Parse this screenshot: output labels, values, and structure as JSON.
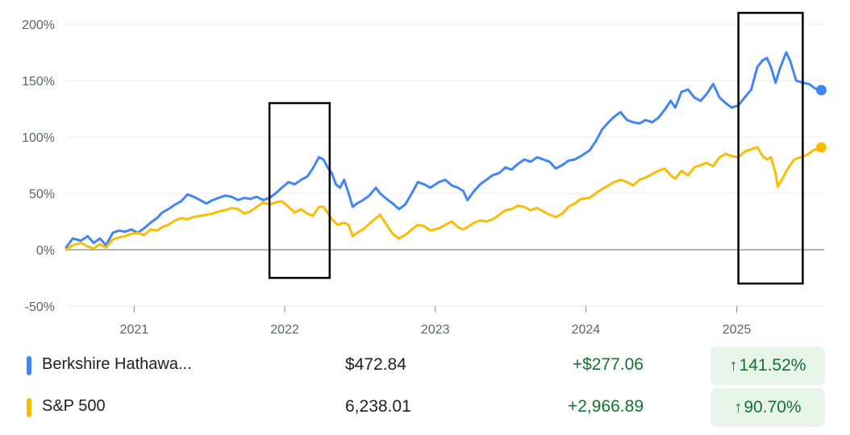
{
  "chart_data": {
    "type": "line",
    "y_unit": "%",
    "ylim": [
      -50,
      200
    ],
    "yticks": [
      {
        "value": 200,
        "label": "200%"
      },
      {
        "value": 150,
        "label": "150%"
      },
      {
        "value": 100,
        "label": "100%"
      },
      {
        "value": 50,
        "label": "50%"
      },
      {
        "value": 0,
        "label": "0%"
      },
      {
        "value": -50,
        "label": "-50%"
      }
    ],
    "xlim": [
      "2020-07-20",
      "2025-08-01"
    ],
    "xticks": [
      {
        "value": "2021-01-01",
        "label": "2021"
      },
      {
        "value": "2022-01-01",
        "label": "2022"
      },
      {
        "value": "2023-01-01",
        "label": "2023"
      },
      {
        "value": "2024-01-01",
        "label": "2024"
      },
      {
        "value": "2025-01-01",
        "label": "2025"
      }
    ],
    "grid": true,
    "series": [
      {
        "name": "Berkshire Hathaway",
        "color": "#4285f4",
        "points": [
          [
            "2020-07-20",
            2
          ],
          [
            "2020-08-05",
            10
          ],
          [
            "2020-08-25",
            8
          ],
          [
            "2020-09-10",
            12
          ],
          [
            "2020-09-25",
            6
          ],
          [
            "2020-10-10",
            10
          ],
          [
            "2020-10-25",
            4
          ],
          [
            "2020-11-10",
            15
          ],
          [
            "2020-11-25",
            17
          ],
          [
            "2020-12-10",
            16
          ],
          [
            "2020-12-25",
            18
          ],
          [
            "2021-01-10",
            15
          ],
          [
            "2021-01-25",
            19
          ],
          [
            "2021-02-10",
            24
          ],
          [
            "2021-02-25",
            28
          ],
          [
            "2021-03-10",
            33
          ],
          [
            "2021-03-25",
            36
          ],
          [
            "2021-04-10",
            40
          ],
          [
            "2021-04-25",
            43
          ],
          [
            "2021-05-10",
            49
          ],
          [
            "2021-05-25",
            47
          ],
          [
            "2021-06-10",
            44
          ],
          [
            "2021-06-25",
            41
          ],
          [
            "2021-07-10",
            44
          ],
          [
            "2021-07-25",
            46
          ],
          [
            "2021-08-10",
            48
          ],
          [
            "2021-08-25",
            47
          ],
          [
            "2021-09-10",
            44
          ],
          [
            "2021-09-25",
            46
          ],
          [
            "2021-10-10",
            45
          ],
          [
            "2021-10-25",
            47
          ],
          [
            "2021-11-10",
            44
          ],
          [
            "2021-11-25",
            46
          ],
          [
            "2021-12-10",
            50
          ],
          [
            "2021-12-25",
            55
          ],
          [
            "2022-01-10",
            60
          ],
          [
            "2022-01-25",
            58
          ],
          [
            "2022-02-10",
            62
          ],
          [
            "2022-02-25",
            65
          ],
          [
            "2022-03-10",
            72
          ],
          [
            "2022-03-25",
            82
          ],
          [
            "2022-04-05",
            80
          ],
          [
            "2022-04-15",
            73
          ],
          [
            "2022-04-25",
            68
          ],
          [
            "2022-05-05",
            58
          ],
          [
            "2022-05-15",
            55
          ],
          [
            "2022-05-25",
            62
          ],
          [
            "2022-06-05",
            50
          ],
          [
            "2022-06-15",
            38
          ],
          [
            "2022-06-25",
            41
          ],
          [
            "2022-07-10",
            44
          ],
          [
            "2022-07-25",
            48
          ],
          [
            "2022-08-10",
            55
          ],
          [
            "2022-08-20",
            50
          ],
          [
            "2022-09-05",
            45
          ],
          [
            "2022-09-20",
            41
          ],
          [
            "2022-10-05",
            36
          ],
          [
            "2022-10-20",
            40
          ],
          [
            "2022-11-05",
            50
          ],
          [
            "2022-11-20",
            60
          ],
          [
            "2022-12-05",
            58
          ],
          [
            "2022-12-20",
            55
          ],
          [
            "2023-01-10",
            60
          ],
          [
            "2023-01-25",
            62
          ],
          [
            "2023-02-10",
            57
          ],
          [
            "2023-02-25",
            55
          ],
          [
            "2023-03-10",
            52
          ],
          [
            "2023-03-20",
            44
          ],
          [
            "2023-04-05",
            52
          ],
          [
            "2023-04-20",
            58
          ],
          [
            "2023-05-05",
            62
          ],
          [
            "2023-05-20",
            66
          ],
          [
            "2023-06-05",
            68
          ],
          [
            "2023-06-20",
            73
          ],
          [
            "2023-07-05",
            71
          ],
          [
            "2023-07-20",
            76
          ],
          [
            "2023-08-05",
            80
          ],
          [
            "2023-08-20",
            78
          ],
          [
            "2023-09-05",
            82
          ],
          [
            "2023-09-20",
            80
          ],
          [
            "2023-10-05",
            78
          ],
          [
            "2023-10-20",
            72
          ],
          [
            "2023-11-05",
            75
          ],
          [
            "2023-11-20",
            79
          ],
          [
            "2023-12-05",
            80
          ],
          [
            "2023-12-20",
            83
          ],
          [
            "2024-01-10",
            88
          ],
          [
            "2024-01-25",
            96
          ],
          [
            "2024-02-10",
            107
          ],
          [
            "2024-02-25",
            113
          ],
          [
            "2024-03-10",
            118
          ],
          [
            "2024-03-25",
            122
          ],
          [
            "2024-04-10",
            115
          ],
          [
            "2024-04-25",
            113
          ],
          [
            "2024-05-10",
            112
          ],
          [
            "2024-05-25",
            115
          ],
          [
            "2024-06-10",
            113
          ],
          [
            "2024-06-25",
            117
          ],
          [
            "2024-07-10",
            124
          ],
          [
            "2024-07-25",
            132
          ],
          [
            "2024-08-05",
            126
          ],
          [
            "2024-08-20",
            140
          ],
          [
            "2024-09-05",
            142
          ],
          [
            "2024-09-20",
            135
          ],
          [
            "2024-10-05",
            132
          ],
          [
            "2024-10-20",
            138
          ],
          [
            "2024-11-05",
            147
          ],
          [
            "2024-11-20",
            135
          ],
          [
            "2024-12-05",
            130
          ],
          [
            "2024-12-20",
            126
          ],
          [
            "2025-01-05",
            128
          ],
          [
            "2025-01-20",
            135
          ],
          [
            "2025-02-05",
            142
          ],
          [
            "2025-02-20",
            162
          ],
          [
            "2025-03-05",
            168
          ],
          [
            "2025-03-15",
            170
          ],
          [
            "2025-03-25",
            162
          ],
          [
            "2025-04-05",
            148
          ],
          [
            "2025-04-15",
            160
          ],
          [
            "2025-05-01",
            175
          ],
          [
            "2025-05-10",
            168
          ],
          [
            "2025-05-25",
            150
          ],
          [
            "2025-06-10",
            148
          ],
          [
            "2025-06-25",
            147
          ],
          [
            "2025-07-10",
            143
          ],
          [
            "2025-07-25",
            141.52
          ]
        ]
      },
      {
        "name": "S&P 500",
        "color": "#fbbc04",
        "points": [
          [
            "2020-07-20",
            0
          ],
          [
            "2020-08-05",
            4
          ],
          [
            "2020-08-25",
            6
          ],
          [
            "2020-09-10",
            3
          ],
          [
            "2020-09-25",
            1
          ],
          [
            "2020-10-10",
            5
          ],
          [
            "2020-10-25",
            2
          ],
          [
            "2020-11-10",
            9
          ],
          [
            "2020-11-25",
            11
          ],
          [
            "2020-12-10",
            12
          ],
          [
            "2020-12-25",
            14
          ],
          [
            "2021-01-10",
            15
          ],
          [
            "2021-01-25",
            13
          ],
          [
            "2021-02-10",
            18
          ],
          [
            "2021-02-25",
            17
          ],
          [
            "2021-03-10",
            20
          ],
          [
            "2021-03-25",
            22
          ],
          [
            "2021-04-10",
            26
          ],
          [
            "2021-04-25",
            28
          ],
          [
            "2021-05-10",
            27
          ],
          [
            "2021-05-25",
            29
          ],
          [
            "2021-06-10",
            30
          ],
          [
            "2021-06-25",
            31
          ],
          [
            "2021-07-10",
            32
          ],
          [
            "2021-07-25",
            34
          ],
          [
            "2021-08-10",
            35
          ],
          [
            "2021-08-25",
            37
          ],
          [
            "2021-09-10",
            36
          ],
          [
            "2021-09-25",
            32
          ],
          [
            "2021-10-10",
            34
          ],
          [
            "2021-10-25",
            38
          ],
          [
            "2021-11-10",
            42
          ],
          [
            "2021-11-25",
            40
          ],
          [
            "2021-12-10",
            42
          ],
          [
            "2021-12-25",
            43
          ],
          [
            "2022-01-10",
            38
          ],
          [
            "2022-01-25",
            33
          ],
          [
            "2022-02-10",
            36
          ],
          [
            "2022-02-25",
            32
          ],
          [
            "2022-03-10",
            30
          ],
          [
            "2022-03-25",
            38
          ],
          [
            "2022-04-05",
            38
          ],
          [
            "2022-04-15",
            33
          ],
          [
            "2022-04-25",
            27
          ],
          [
            "2022-05-10",
            22
          ],
          [
            "2022-05-25",
            24
          ],
          [
            "2022-06-05",
            22
          ],
          [
            "2022-06-15",
            12
          ],
          [
            "2022-06-25",
            15
          ],
          [
            "2022-07-10",
            18
          ],
          [
            "2022-07-25",
            23
          ],
          [
            "2022-08-10",
            28
          ],
          [
            "2022-08-20",
            31
          ],
          [
            "2022-09-05",
            22
          ],
          [
            "2022-09-20",
            14
          ],
          [
            "2022-10-05",
            10
          ],
          [
            "2022-10-20",
            13
          ],
          [
            "2022-11-05",
            18
          ],
          [
            "2022-11-20",
            22
          ],
          [
            "2022-12-05",
            21
          ],
          [
            "2022-12-20",
            17
          ],
          [
            "2023-01-10",
            19
          ],
          [
            "2023-01-25",
            22
          ],
          [
            "2023-02-10",
            25
          ],
          [
            "2023-02-25",
            20
          ],
          [
            "2023-03-10",
            18
          ],
          [
            "2023-03-20",
            20
          ],
          [
            "2023-04-05",
            24
          ],
          [
            "2023-04-20",
            26
          ],
          [
            "2023-05-05",
            25
          ],
          [
            "2023-05-20",
            27
          ],
          [
            "2023-06-05",
            31
          ],
          [
            "2023-06-20",
            35
          ],
          [
            "2023-07-05",
            36
          ],
          [
            "2023-07-20",
            39
          ],
          [
            "2023-08-05",
            38
          ],
          [
            "2023-08-20",
            35
          ],
          [
            "2023-09-05",
            37
          ],
          [
            "2023-09-20",
            34
          ],
          [
            "2023-10-05",
            31
          ],
          [
            "2023-10-20",
            29
          ],
          [
            "2023-11-05",
            32
          ],
          [
            "2023-11-20",
            38
          ],
          [
            "2023-12-05",
            41
          ],
          [
            "2023-12-20",
            45
          ],
          [
            "2024-01-10",
            46
          ],
          [
            "2024-01-25",
            50
          ],
          [
            "2024-02-10",
            54
          ],
          [
            "2024-02-25",
            57
          ],
          [
            "2024-03-10",
            60
          ],
          [
            "2024-03-25",
            62
          ],
          [
            "2024-04-10",
            60
          ],
          [
            "2024-04-25",
            57
          ],
          [
            "2024-05-10",
            62
          ],
          [
            "2024-05-25",
            64
          ],
          [
            "2024-06-10",
            67
          ],
          [
            "2024-06-25",
            70
          ],
          [
            "2024-07-10",
            72
          ],
          [
            "2024-07-25",
            66
          ],
          [
            "2024-08-05",
            63
          ],
          [
            "2024-08-20",
            70
          ],
          [
            "2024-09-05",
            66
          ],
          [
            "2024-09-20",
            73
          ],
          [
            "2024-10-05",
            75
          ],
          [
            "2024-10-20",
            77
          ],
          [
            "2024-11-05",
            74
          ],
          [
            "2024-11-20",
            82
          ],
          [
            "2024-12-05",
            85
          ],
          [
            "2024-12-20",
            83
          ],
          [
            "2025-01-05",
            82
          ],
          [
            "2025-01-20",
            87
          ],
          [
            "2025-02-05",
            89
          ],
          [
            "2025-02-20",
            91
          ],
          [
            "2025-03-05",
            83
          ],
          [
            "2025-03-15",
            80
          ],
          [
            "2025-03-25",
            82
          ],
          [
            "2025-04-05",
            68
          ],
          [
            "2025-04-10",
            56
          ],
          [
            "2025-04-20",
            62
          ],
          [
            "2025-05-05",
            72
          ],
          [
            "2025-05-20",
            80
          ],
          [
            "2025-06-05",
            82
          ],
          [
            "2025-06-20",
            84
          ],
          [
            "2025-07-05",
            88
          ],
          [
            "2025-07-25",
            90.7
          ]
        ]
      }
    ],
    "annotations": [
      {
        "type": "rectangle",
        "x0": "2021-11-25",
        "x1": "2022-04-20",
        "y0": -25,
        "y1": 130,
        "color": "#000000"
      },
      {
        "type": "rectangle",
        "x0": "2025-01-05",
        "x1": "2025-06-10",
        "y0": -30,
        "y1": 210,
        "color": "#000000"
      }
    ]
  },
  "legend_rows": [
    {
      "name": "Berkshire Hathawa...",
      "color": "#4285f4",
      "price": "$472.84",
      "change": "+$277.06",
      "pct": "141.52%",
      "arrow": "↑"
    },
    {
      "name": "S&P 500",
      "color": "#fbbc04",
      "price": "6,238.01",
      "change": "+2,966.89",
      "pct": "90.70%",
      "arrow": "↑"
    }
  ]
}
